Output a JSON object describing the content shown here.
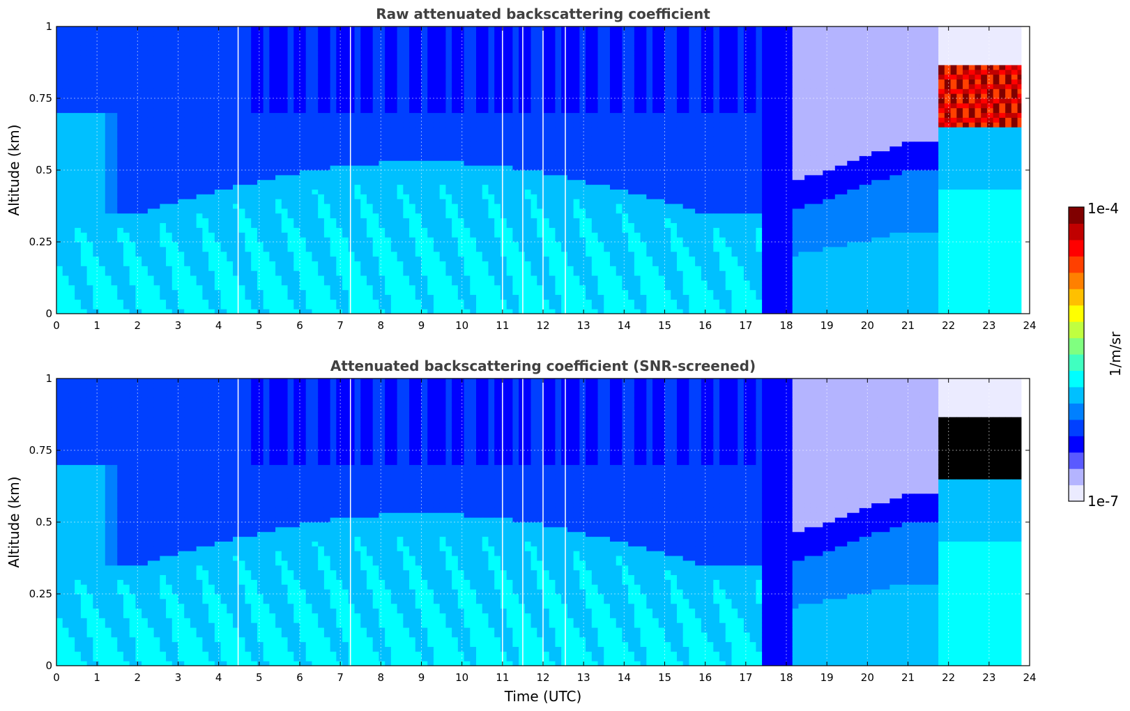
{
  "chart_data": [
    {
      "type": "heatmap",
      "title": "Raw attenuated backscattering coefficient",
      "xlabel": "",
      "ylabel": "Altitude (km)",
      "xlim": [
        0,
        24
      ],
      "ylim": [
        0,
        1
      ],
      "x_ticks": [
        "0",
        "1",
        "2",
        "3",
        "4",
        "5",
        "6",
        "7",
        "8",
        "9",
        "10",
        "11",
        "12",
        "13",
        "14",
        "15",
        "16",
        "17",
        "18",
        "19",
        "20",
        "21",
        "22",
        "23",
        "24"
      ],
      "y_ticks": [
        "0",
        "0.25",
        "0.5",
        "0.75",
        "1"
      ],
      "grid": true,
      "data_gaps_utc": [
        4.48,
        7.25,
        11.0,
        11.5,
        12.0,
        12.55
      ],
      "features": [
        {
          "kind": "cloud",
          "time_utc": [
            21.7,
            23.8
          ],
          "altitude_km": [
            0.65,
            0.85
          ],
          "level": "high"
        },
        {
          "kind": "clear-sky",
          "time_utc": [
            18.0,
            21.7
          ],
          "altitude_km": [
            0.5,
            1.0
          ],
          "level": "very-low"
        },
        {
          "kind": "boundary-layer",
          "time_utc": [
            2.0,
            17.0
          ],
          "altitude_km": [
            0.0,
            0.45
          ],
          "level": "moderate"
        }
      ]
    },
    {
      "type": "heatmap",
      "title": "Attenuated backscattering coefficient (SNR-screened)",
      "xlabel": "Time (UTC)",
      "ylabel": "Altitude (km)",
      "xlim": [
        0,
        24
      ],
      "ylim": [
        0,
        1
      ],
      "x_ticks": [
        "0",
        "1",
        "2",
        "3",
        "4",
        "5",
        "6",
        "7",
        "8",
        "9",
        "10",
        "11",
        "12",
        "13",
        "14",
        "15",
        "16",
        "17",
        "18",
        "19",
        "20",
        "21",
        "22",
        "23",
        "24"
      ],
      "y_ticks": [
        "0",
        "0.25",
        "0.5",
        "0.75",
        "1"
      ],
      "grid": true,
      "data_gaps_utc": [
        4.48,
        7.25,
        11.0,
        11.5,
        12.0,
        12.55
      ],
      "features": [
        {
          "kind": "cloud-screened",
          "time_utc": [
            21.7,
            23.8
          ],
          "altitude_km": [
            0.65,
            0.85
          ],
          "level": "masked"
        },
        {
          "kind": "clear-sky",
          "time_utc": [
            18.0,
            21.7
          ],
          "altitude_km": [
            0.5,
            1.0
          ],
          "level": "very-low"
        }
      ]
    }
  ],
  "colorbar": {
    "max_label": "1e-4",
    "min_label": "1e-7",
    "unit_label": "1/m/sr",
    "range": [
      1e-07,
      0.0001
    ],
    "scale": "log",
    "colormap": [
      "#ebebff",
      "#b4b4ff",
      "#5a5aff",
      "#0000ff",
      "#0040ff",
      "#0080ff",
      "#00c0ff",
      "#00ffff",
      "#40ffc0",
      "#80ff80",
      "#c0ff40",
      "#ffff00",
      "#ffc000",
      "#ff8000",
      "#ff4000",
      "#ff0000",
      "#c00000",
      "#800000"
    ]
  }
}
